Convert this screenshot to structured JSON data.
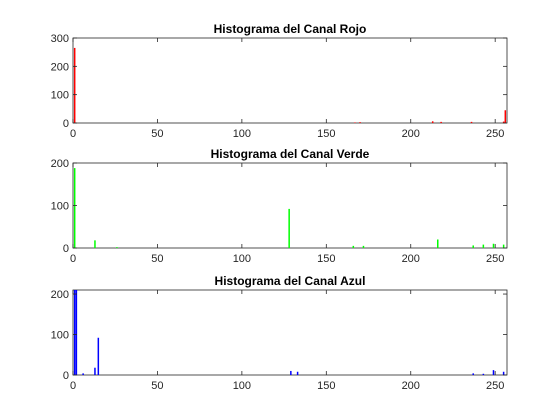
{
  "chart_data": [
    {
      "type": "bar",
      "title": "Histograma del Canal Rojo",
      "xlabel": "",
      "ylabel": "",
      "color": "#ff0000",
      "xlim": [
        0,
        257
      ],
      "ylim": [
        0,
        300
      ],
      "xticks": [
        0,
        50,
        100,
        150,
        200,
        250
      ],
      "yticks": [
        0,
        100,
        200,
        300
      ],
      "x": [
        1,
        167,
        170,
        213,
        218,
        236,
        255,
        256
      ],
      "values": [
        265,
        2,
        3,
        6,
        4,
        4,
        5,
        45
      ]
    },
    {
      "type": "bar",
      "title": "Histograma del Canal Verde",
      "xlabel": "",
      "ylabel": "",
      "color": "#00ff00",
      "xlim": [
        0,
        257
      ],
      "ylim": [
        0,
        200
      ],
      "xticks": [
        0,
        50,
        100,
        150,
        200,
        250
      ],
      "yticks": [
        0,
        100,
        200
      ],
      "x": [
        1,
        13,
        26,
        128,
        166,
        172,
        216,
        237,
        243,
        249,
        255
      ],
      "values": [
        188,
        18,
        2,
        92,
        5,
        5,
        20,
        6,
        8,
        10,
        8
      ]
    },
    {
      "type": "bar",
      "title": "Histograma del Canal Azul",
      "xlabel": "",
      "ylabel": "",
      "color": "#0000ff",
      "xlim": [
        0,
        257
      ],
      "ylim": [
        0,
        210
      ],
      "xticks": [
        0,
        50,
        100,
        150,
        200,
        250
      ],
      "yticks": [
        0,
        100,
        200
      ],
      "x": [
        1,
        2,
        6,
        13,
        15,
        129,
        133,
        237,
        243,
        249,
        255
      ],
      "values": [
        210,
        210,
        4,
        18,
        92,
        10,
        8,
        4,
        3,
        12,
        8
      ]
    }
  ]
}
